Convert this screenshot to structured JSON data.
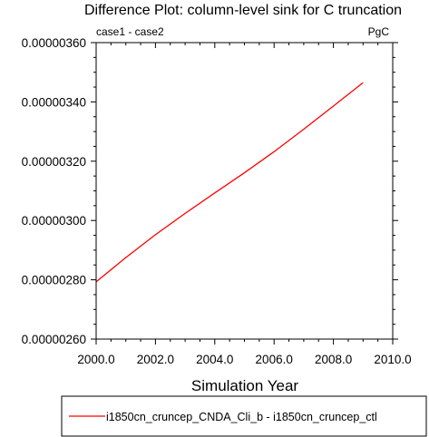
{
  "chart_data": {
    "type": "line",
    "title": "Difference Plot: column-level sink for C truncation",
    "subtitle_left": "case1 - case2",
    "subtitle_right": "PgC",
    "xlabel": "Simulation Year",
    "ylabel": "",
    "xlim": [
      2000.0,
      2010.0
    ],
    "ylim": [
      2.6e-06,
      3.6e-06
    ],
    "x_ticks": [
      2000.0,
      2002.0,
      2004.0,
      2006.0,
      2008.0,
      2010.0
    ],
    "x_tick_labels": [
      "2000.0",
      "2002.0",
      "2004.0",
      "2006.0",
      "2008.0",
      "2010.0"
    ],
    "y_ticks": [
      2.6e-06,
      2.8e-06,
      3e-06,
      3.2e-06,
      3.4e-06,
      3.6e-06
    ],
    "y_tick_labels": [
      "0.00000260",
      "0.00000280",
      "0.00000300",
      "0.00000320",
      "0.00000340",
      "0.00000360"
    ],
    "grid": false,
    "legend_position": "bottom",
    "series": [
      {
        "name": "i1850cn_cruncep_CNDA_Cli_b - i1850cn_cruncep_ctl",
        "color": "#ff0000",
        "x": [
          2000.0,
          2001.0,
          2002.0,
          2003.0,
          2004.0,
          2005.0,
          2006.0,
          2007.0,
          2008.0,
          2009.0
        ],
        "y": [
          2.793e-06,
          2.875e-06,
          2.952e-06,
          3.024e-06,
          3.093e-06,
          3.161e-06,
          3.232e-06,
          3.308e-06,
          3.386e-06,
          3.465e-06
        ]
      }
    ]
  }
}
